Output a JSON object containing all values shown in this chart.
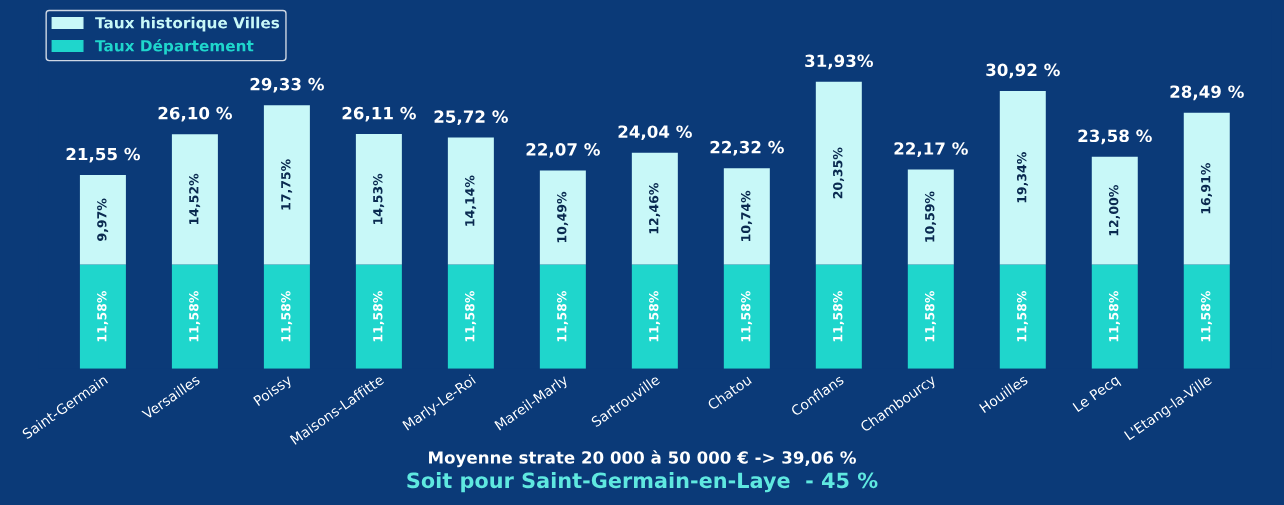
{
  "chart_data": {
    "type": "bar",
    "stacked": true,
    "legend": "top left",
    "categories": [
      "Saint-Germain",
      "Versailles",
      "Poissy",
      "Maisons-Laffitte",
      "Marly-Le-Roi",
      "Mareil-Marly",
      "Sartrouville",
      "Chatou",
      "Conflans",
      "Chambourcy",
      "Houilles",
      "Le Pecq",
      "L'Etang-la-Ville"
    ],
    "series": [
      {
        "name": "Taux Département",
        "color": "#1fd6cc",
        "values": [
          11.58,
          11.58,
          11.58,
          11.58,
          11.58,
          11.58,
          11.58,
          11.58,
          11.58,
          11.58,
          11.58,
          11.58,
          11.58
        ],
        "value_labels": [
          "11,58%",
          "11,58%",
          "11,58%",
          "11,58%",
          "11,58%",
          "11,58%",
          "11,58%",
          "11,58%",
          "11,58%",
          "11,58%",
          "11,58%",
          "11,58%",
          "11,58%"
        ]
      },
      {
        "name": "Taux historique Villes",
        "color": "#c8f8f8",
        "values": [
          9.97,
          14.52,
          17.75,
          14.53,
          14.14,
          10.49,
          12.46,
          10.74,
          20.35,
          10.59,
          19.34,
          12.0,
          16.91
        ],
        "value_labels": [
          "9,97%",
          "14,52%",
          "17,75%",
          "14,53%",
          "14,14%",
          "10,49%",
          "12,46%",
          "10,74%",
          "20,35%",
          "10,59%",
          "19,34%",
          "12,00%",
          "16,91%"
        ]
      }
    ],
    "totals": [
      "21,55 %",
      "26,10 %",
      "29,33 %",
      "26,11 %",
      "25,72 %",
      "22,07 %",
      "24,04 %",
      "22,32 %",
      "31,93%",
      "22,17 %",
      "30,92 %",
      "23,58 %",
      "28,49 %"
    ],
    "annotations": [
      "Moyenne strate 20 000 à 50 000 € -> 39,06 %",
      "Soit pour Saint-Germain-en-Laye  - 45 %"
    ]
  }
}
